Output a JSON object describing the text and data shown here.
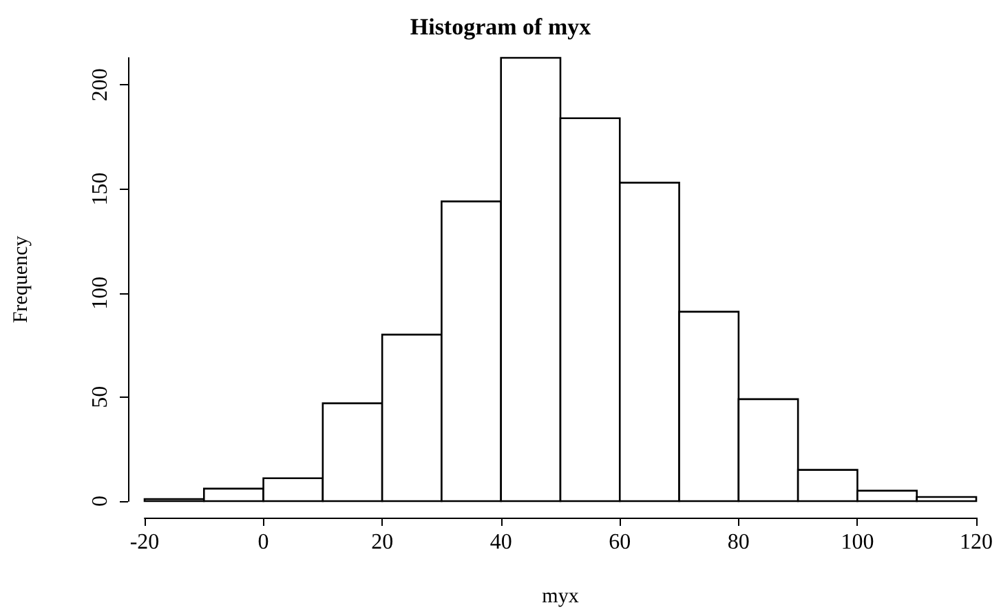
{
  "chart_data": {
    "type": "histogram",
    "title": "Histogram of myx",
    "xlabel": "myx",
    "ylabel": "Frequency",
    "bins": [
      -20,
      -10,
      0,
      10,
      20,
      30,
      40,
      50,
      60,
      70,
      80,
      90,
      100,
      110,
      120
    ],
    "values": [
      1,
      6,
      11,
      47,
      80,
      144,
      213,
      184,
      153,
      91,
      49,
      15,
      5,
      2
    ],
    "color": "#ffffff",
    "xlim": [
      -20,
      120
    ],
    "xticks": [
      -20,
      0,
      20,
      40,
      60,
      80,
      100,
      120
    ],
    "ylim": [
      0,
      213
    ],
    "yticks": [
      0,
      50,
      100,
      150,
      200
    ],
    "grid": false
  }
}
